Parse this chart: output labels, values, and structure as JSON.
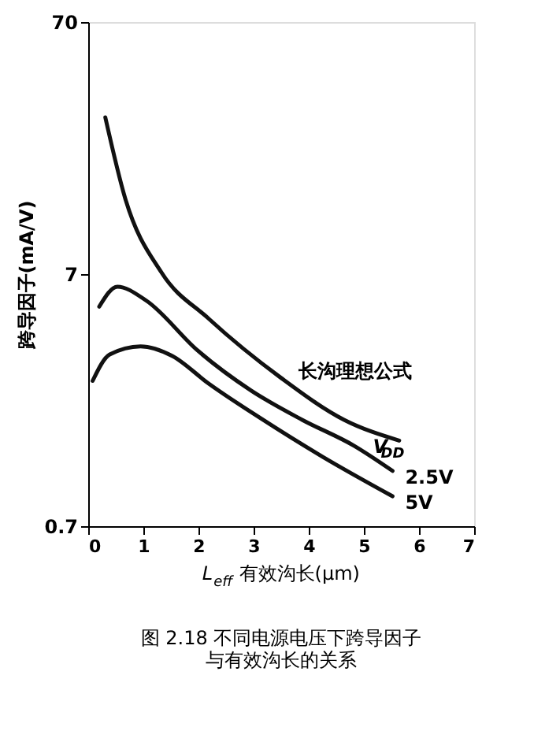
{
  "chart_data": {
    "type": "line",
    "xlabel": "L$_{eff}$有效沟长(μm)",
    "ylabel": "跨导因子(mA/V)",
    "xlim": [
      0,
      7
    ],
    "xticks": [
      0,
      1,
      2,
      3,
      4,
      5,
      6,
      7
    ],
    "ylim": [
      0.7,
      70
    ],
    "yticks": [
      0.7,
      7,
      70
    ],
    "log": "y",
    "grid": false,
    "legend": false,
    "line_style": "solid",
    "marker": "none",
    "series": [
      {
        "color": "#111111",
        "x": [
          0.31,
          0.67,
          1.33,
          2.18,
          3.5,
          4.64,
          5.64
        ],
        "values": [
          29.3,
          14.0,
          7.1,
          4.67,
          2.71,
          1.85,
          1.53
        ]
      },
      {
        "name": "2.5V",
        "color": "#111111",
        "x": [
          0.2,
          0.53,
          1.05,
          1.98,
          2.95,
          3.88,
          4.82,
          5.52
        ],
        "values": [
          5.2,
          6.24,
          5.5,
          3.49,
          2.42,
          1.85,
          1.46,
          1.16
        ]
      },
      {
        "name": "5V",
        "color": "#111111",
        "x": [
          0.08,
          0.39,
          0.95,
          1.52,
          2.18,
          3.12,
          4.25,
          5.52
        ],
        "values": [
          2.64,
          3.36,
          3.62,
          3.32,
          2.58,
          1.88,
          1.32,
          0.92
        ]
      }
    ],
    "annotations": [
      {
        "text": "长沟理想公式",
        "x": 3.7,
        "y": 2.5
      },
      {
        "text": "V$_{DD}$",
        "x": 5.05,
        "y": 1.45
      },
      "图 2.18  不同电源电压下跨导因子",
      "与有效沟长的关系"
    ]
  }
}
